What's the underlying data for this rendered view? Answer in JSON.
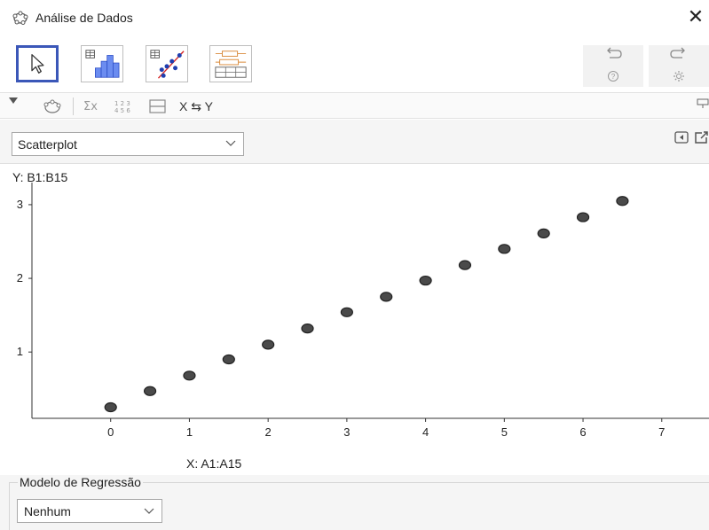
{
  "window": {
    "title": "Análise de Dados",
    "close_glyph": "✕"
  },
  "toolbar": {
    "modes": [
      {
        "name": "move",
        "icon": "pointer-arrow-icon",
        "active": true
      },
      {
        "name": "one-variable",
        "icon": "histogram-icon",
        "active": false
      },
      {
        "name": "two-variable",
        "icon": "scatter-regression-icon",
        "active": false
      },
      {
        "name": "multi-variable",
        "icon": "boxplot-icon",
        "active": false
      }
    ],
    "undo_icon": "undo-icon",
    "redo_icon": "redo-icon",
    "help_icon": "help-icon",
    "settings_icon": "settings-gear-icon"
  },
  "subtoolbar": {
    "swap_label": "X ⇆ Y",
    "icons": [
      "triangle-menu-icon",
      "stats-icon",
      "sum-icon",
      "data-123-icon",
      "split-view-icon"
    ]
  },
  "plot_type": {
    "selected": "Scatterplot"
  },
  "plot": {
    "y_label": "Y:  B1:B15",
    "x_label": "X:  A1:A15"
  },
  "regression": {
    "title": "Modelo de Regressão",
    "selected": "Nenhum"
  },
  "colors": {
    "accent": "#3b57b8",
    "point_fill": "#4a4a4a",
    "point_stroke": "#222222"
  },
  "chart_data": {
    "type": "scatter",
    "x": [
      0,
      0.5,
      1,
      1.5,
      2,
      2.5,
      3,
      3.5,
      4,
      4.5,
      5,
      5.5,
      6,
      6.5
    ],
    "y": [
      0.25,
      0.47,
      0.68,
      0.9,
      1.1,
      1.32,
      1.54,
      1.75,
      1.97,
      2.18,
      2.4,
      2.61,
      2.83,
      3.05
    ],
    "xticks": [
      "0",
      "1",
      "2",
      "3",
      "4",
      "5",
      "6",
      "7"
    ],
    "yticks": [
      "1",
      "2",
      "3"
    ],
    "xlim": [
      -1,
      7.6
    ],
    "ylim": [
      0.1,
      3.3
    ],
    "grid": false,
    "legend": "none"
  }
}
